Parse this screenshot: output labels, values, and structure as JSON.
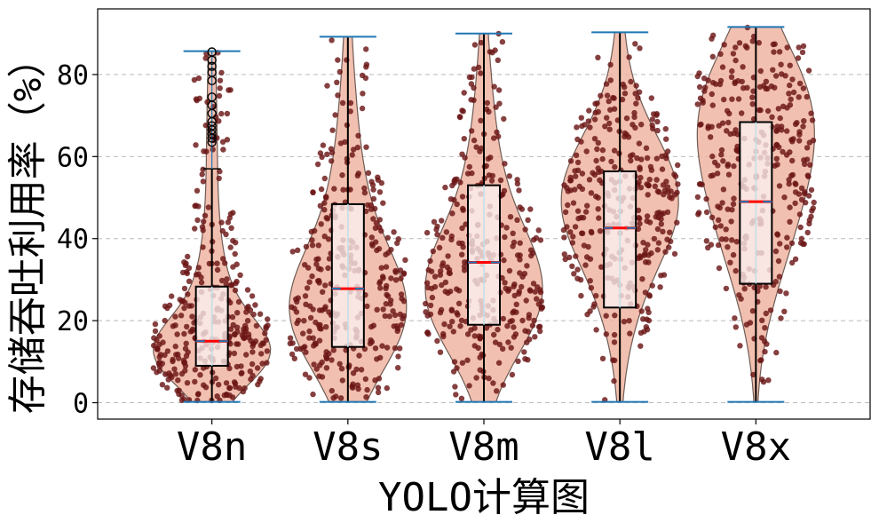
{
  "chart_data": {
    "type": "violin",
    "title": "",
    "xlabel": "YOLO计算图",
    "ylabel": "存储吞吐利用率（%）",
    "categories": [
      "V8n",
      "V8s",
      "V8m",
      "V8l",
      "V8x"
    ],
    "ylim": [
      -4,
      96
    ],
    "yticks": [
      0,
      20,
      40,
      60,
      80
    ],
    "grid": {
      "y": true,
      "style": "dashed"
    },
    "distributions": [
      {
        "category": "V8n",
        "min": 0.2,
        "q1": 9,
        "median": 15,
        "q3": 28.3,
        "max": 85.7,
        "whisker_high": 57,
        "outliers": [
          63.5,
          64.5,
          65.5,
          66.5,
          67.5,
          68.5,
          70.5,
          72.5,
          74.5,
          78.5,
          80.5,
          82,
          83.5,
          85.5
        ],
        "density_peak_at": 12
      },
      {
        "category": "V8s",
        "min": 0.2,
        "q1": 13.6,
        "median": 27.8,
        "q3": 48.4,
        "max": 89.2,
        "density_peak_at": 22
      },
      {
        "category": "V8m",
        "min": 0.2,
        "q1": 19,
        "median": 34.2,
        "q3": 53,
        "max": 90,
        "density_peak_at": 25
      },
      {
        "category": "V8l",
        "min": 0.2,
        "q1": 23.2,
        "median": 42.6,
        "q3": 56.4,
        "max": 90.3,
        "density_peak_at": 52
      },
      {
        "category": "V8x",
        "min": 0.2,
        "q1": 29,
        "median": 49,
        "q3": 68.4,
        "max": 91.6,
        "density_peak_at": 70
      }
    ],
    "colors": {
      "violin_fill": "#efb09c",
      "violin_edge": "#6e5c56",
      "points": "#6b1616",
      "box_fill": "#fbf0ee",
      "median": "#ff0000",
      "whisker_cap": "#1f77b4",
      "grid": "#bbbbbb"
    }
  }
}
